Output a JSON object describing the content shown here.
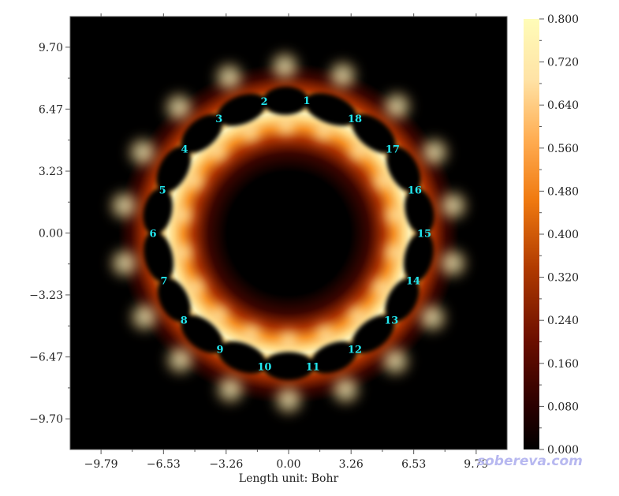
{
  "chart_data": {
    "type": "heatmap",
    "title": "",
    "xlabel": "Length unit: Bohr",
    "ylabel": "",
    "x_ticks": [
      "−9.79",
      "−6.53",
      "−3.26",
      "0.00",
      "3.26",
      "6.53",
      "9.79"
    ],
    "x_tick_values": [
      -9.79,
      -6.53,
      -3.26,
      0.0,
      3.26,
      6.53,
      9.79
    ],
    "y_ticks": [
      "9.70",
      "6.47",
      "3.23",
      "0.00",
      "−3.23",
      "−6.47",
      "−9.70"
    ],
    "y_tick_values": [
      9.7,
      6.47,
      3.23,
      0.0,
      -3.23,
      -6.47,
      -9.7
    ],
    "xlim": [
      -11.4,
      11.4
    ],
    "ylim": [
      -11.3,
      11.3
    ],
    "colorbar": {
      "ticks": [
        "0.800",
        "0.720",
        "0.640",
        "0.560",
        "0.480",
        "0.400",
        "0.320",
        "0.240",
        "0.160",
        "0.080",
        "0.000"
      ],
      "range": [
        0.0,
        0.8
      ],
      "colors": [
        "#000000",
        "#3a0000",
        "#7a1800",
        "#c24400",
        "#f07a10",
        "#ffb258",
        "#ffe6a8",
        "#fffcb8"
      ]
    },
    "ring_radius": 7.0,
    "atoms": [
      {
        "label": "1",
        "x": 0.95,
        "y": 6.93
      },
      {
        "label": "2",
        "x": -1.27,
        "y": 6.89
      },
      {
        "label": "3",
        "x": -3.63,
        "y": 5.98
      },
      {
        "label": "4",
        "x": -5.43,
        "y": 4.4
      },
      {
        "label": "5",
        "x": -6.58,
        "y": 2.26
      },
      {
        "label": "6",
        "x": -7.08,
        "y": 0.0
      },
      {
        "label": "7",
        "x": -6.5,
        "y": -2.47
      },
      {
        "label": "8",
        "x": -5.46,
        "y": -4.52
      },
      {
        "label": "9",
        "x": -3.58,
        "y": -6.05
      },
      {
        "label": "10",
        "x": -1.26,
        "y": -6.95
      },
      {
        "label": "11",
        "x": 1.26,
        "y": -6.95
      },
      {
        "label": "12",
        "x": 3.46,
        "y": -6.05
      },
      {
        "label": "13",
        "x": 5.36,
        "y": -4.52
      },
      {
        "label": "14",
        "x": 6.5,
        "y": -2.47
      },
      {
        "label": "15",
        "x": 7.08,
        "y": 0.0
      },
      {
        "label": "16",
        "x": 6.58,
        "y": 2.26
      },
      {
        "label": "17",
        "x": 5.43,
        "y": 4.4
      },
      {
        "label": "18",
        "x": 3.46,
        "y": 5.98
      }
    ]
  },
  "watermark": "sobereva.com"
}
